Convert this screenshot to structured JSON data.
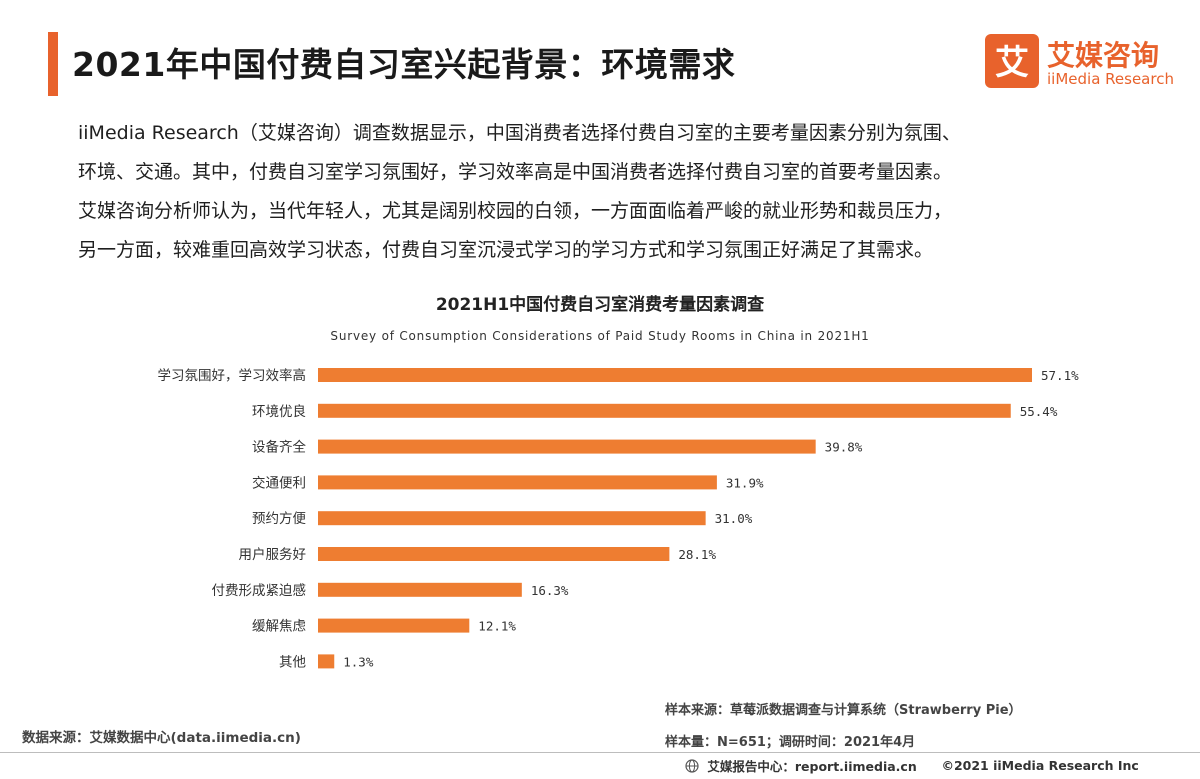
{
  "header": {
    "title": "2021年中国付费自习室兴起背景：环境需求",
    "accent_color": "#E8622C"
  },
  "logo": {
    "mark_glyph": "艾",
    "name_cn": "艾媒咨询",
    "name_en": "iiMedia Research",
    "color": "#E8622C"
  },
  "intro": {
    "lines": [
      "iiMedia Research（艾媒咨询）调查数据显示，中国消费者选择付费自习室的主要考量因素分别为氛围、",
      "环境、交通。其中，付费自习室学习氛围好，学习效率高是中国消费者选择付费自习室的首要考量因素。",
      "艾媒咨询分析师认为，当代年轻人，尤其是阔别校园的白领，一方面面临着严峻的就业形势和裁员压力，",
      "另一方面，较难重回高效学习状态，付费自习室沉浸式学习的学习方式和学习氛围正好满足了其需求。"
    ]
  },
  "chart_data": {
    "type": "bar",
    "orientation": "horizontal",
    "title": "2021H1中国付费自习室消费考量因素调查",
    "subtitle": "Survey of Consumption Considerations of Paid Study Rooms in China in 2021H1",
    "categories": [
      "学习氛围好，学习效率高",
      "环境优良",
      "设备齐全",
      "交通便利",
      "预约方便",
      "用户服务好",
      "付费形成紧迫感",
      "缓解焦虑",
      "其他"
    ],
    "values": [
      57.1,
      55.4,
      39.8,
      31.9,
      31.0,
      28.1,
      16.3,
      12.1,
      1.3
    ],
    "value_labels": [
      "57.1%",
      "55.4%",
      "39.8%",
      "31.9%",
      "31.0%",
      "28.1%",
      "16.3%",
      "12.1%",
      "1.3%"
    ],
    "unit": "%",
    "bar_color": "#EE7D31",
    "xlim": [
      0,
      57.1
    ],
    "grid": false,
    "legend": "none"
  },
  "sources": {
    "data_source": "数据来源：艾媒数据中心(data.iimedia.cn)",
    "sample_source": "样本来源：草莓派数据调查与计算系统（Strawberry Pie）",
    "sample_size": "样本量：N=651；调研时间：2021年4月"
  },
  "footer": {
    "report_center": "艾媒报告中心：report.iimedia.cn",
    "copyright": "©2021  iiMedia Research  Inc"
  }
}
